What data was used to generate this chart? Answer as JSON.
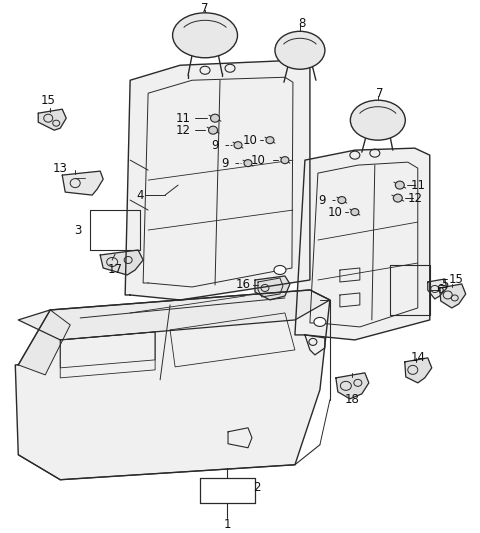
{
  "bg_color": "#ffffff",
  "line_color": "#2a2a2a",
  "label_color": "#111111",
  "label_fontsize": 8.5,
  "fig_width": 4.8,
  "fig_height": 5.33,
  "dpi": 100
}
